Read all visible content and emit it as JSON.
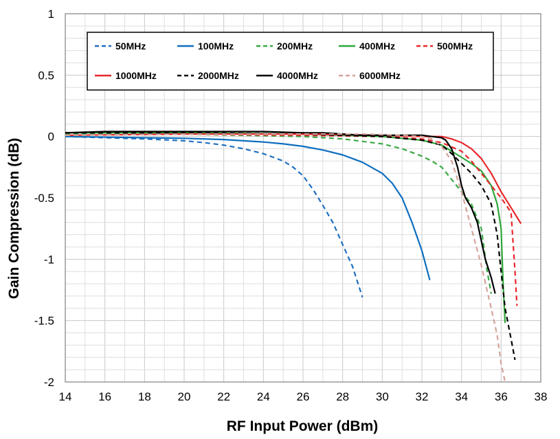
{
  "chart_data": {
    "type": "line",
    "title": "",
    "xlabel": "RF Input Power (dBm)",
    "ylabel": "Gain Compression  (dB)",
    "xlim": [
      14,
      38
    ],
    "ylim": [
      -2,
      1
    ],
    "xticks": [
      14,
      16,
      18,
      20,
      22,
      24,
      26,
      28,
      30,
      32,
      34,
      36,
      38
    ],
    "yticks": [
      1,
      0.5,
      0,
      -0.5,
      -1,
      -1.5,
      -2
    ],
    "ytick_labels": [
      "1",
      "0.5",
      "0",
      "-0.5",
      "-1",
      "-1.5",
      "-2"
    ],
    "grid": true,
    "legend_position": "top",
    "series": [
      {
        "name": "50MHz",
        "color": "#1f6fbf",
        "dash": "dashed",
        "x": [
          14,
          16,
          18,
          20,
          21,
          22,
          23,
          24,
          24.5,
          25,
          25.5,
          26,
          26.5,
          27,
          27.5,
          28,
          28.5,
          29
        ],
        "y": [
          0,
          -0.01,
          -0.02,
          -0.035,
          -0.05,
          -0.07,
          -0.1,
          -0.14,
          -0.17,
          -0.2,
          -0.25,
          -0.32,
          -0.43,
          -0.56,
          -0.7,
          -0.88,
          -1.06,
          -1.31
        ]
      },
      {
        "name": "100MHz",
        "color": "#0d6ebf",
        "solid": true,
        "dash": "solid",
        "x": [
          14,
          18,
          20,
          22,
          24,
          25,
          26,
          27,
          28,
          29,
          30,
          30.5,
          31,
          31.5,
          32,
          32.4
        ],
        "y": [
          0,
          -0.01,
          -0.015,
          -0.025,
          -0.045,
          -0.06,
          -0.08,
          -0.11,
          -0.15,
          -0.21,
          -0.3,
          -0.38,
          -0.5,
          -0.7,
          -0.93,
          -1.17
        ]
      },
      {
        "name": "200MHz",
        "color": "#3aa845",
        "dash": "dashed",
        "x": [
          14,
          20,
          26,
          28,
          30,
          31,
          32,
          32.5,
          33,
          33.5,
          34,
          34.5,
          35,
          35.3,
          35.5
        ],
        "y": [
          0.02,
          0.02,
          0,
          -0.02,
          -0.06,
          -0.1,
          -0.16,
          -0.2,
          -0.25,
          -0.35,
          -0.45,
          -0.55,
          -0.75,
          -1.1,
          -1.28
        ]
      },
      {
        "name": "400MHz",
        "color": "#2ea83a",
        "dash": "solid",
        "x": [
          14,
          20,
          26,
          30,
          32,
          33,
          33.5,
          34,
          34.5,
          35,
          35.5,
          35.8,
          36,
          36.1,
          36.2
        ],
        "y": [
          0.03,
          0.03,
          0.02,
          0,
          -0.03,
          -0.07,
          -0.12,
          -0.17,
          -0.22,
          -0.28,
          -0.4,
          -0.55,
          -0.75,
          -1.2,
          -1.52
        ]
      },
      {
        "name": "500MHz",
        "color": "#e8262a",
        "dash": "dashed",
        "x": [
          14,
          20,
          26,
          30,
          32,
          33,
          34,
          34.5,
          35,
          35.5,
          36,
          36.3,
          36.5,
          36.7,
          36.8
        ],
        "y": [
          0.01,
          0.02,
          0.01,
          0,
          -0.02,
          -0.05,
          -0.12,
          -0.2,
          -0.3,
          -0.4,
          -0.5,
          -0.57,
          -0.62,
          -1.1,
          -1.38
        ]
      },
      {
        "name": "1000MHz",
        "color": "#e8262a",
        "dash": "solid",
        "x": [
          14,
          20,
          26,
          30,
          32,
          33,
          33.5,
          34,
          34.5,
          35,
          35.5,
          36,
          36.5,
          37
        ],
        "y": [
          0.01,
          0.02,
          0.02,
          0.01,
          0,
          0,
          -0.02,
          -0.05,
          -0.1,
          -0.18,
          -0.3,
          -0.45,
          -0.58,
          -0.71
        ]
      },
      {
        "name": "2000MHz",
        "color": "#000000",
        "dash": "dashed",
        "x": [
          14,
          20,
          26,
          30,
          32,
          33,
          33.5,
          34,
          34.5,
          35,
          35.5,
          35.8,
          36,
          36.2,
          36.5,
          36.7
        ],
        "y": [
          0.03,
          0.03,
          0.02,
          0,
          -0.03,
          -0.07,
          -0.14,
          -0.22,
          -0.3,
          -0.4,
          -0.55,
          -0.8,
          -1.1,
          -1.4,
          -1.65,
          -1.82
        ]
      },
      {
        "name": "4000MHz",
        "color": "#000000",
        "dash": "solid",
        "x": [
          14,
          16,
          20,
          24,
          26,
          27,
          28,
          29,
          30,
          31,
          32,
          32.5,
          33,
          33.2,
          33.5,
          33.8,
          34,
          34.2,
          34.5,
          34.8,
          35,
          35.2,
          35.5,
          35.7
        ],
        "y": [
          0.03,
          0.04,
          0.04,
          0.04,
          0.03,
          0.03,
          0.02,
          0.01,
          0.01,
          0.01,
          0.01,
          0,
          -0.01,
          -0.03,
          -0.1,
          -0.25,
          -0.4,
          -0.5,
          -0.58,
          -0.7,
          -0.85,
          -1.0,
          -1.15,
          -1.28
        ]
      },
      {
        "name": "6000MHz",
        "color": "#d4a39a",
        "dash": "dashed",
        "x": [
          14,
          20,
          26,
          29,
          31,
          32,
          32.5,
          33,
          33.5,
          34,
          34.5,
          35,
          35.5,
          35.8,
          36,
          36.2
        ],
        "y": [
          0.01,
          0.02,
          0.02,
          0.02,
          0.01,
          0,
          -0.02,
          -0.08,
          -0.2,
          -0.45,
          -0.75,
          -1.05,
          -1.4,
          -1.62,
          -1.85,
          -2.0
        ]
      }
    ]
  }
}
